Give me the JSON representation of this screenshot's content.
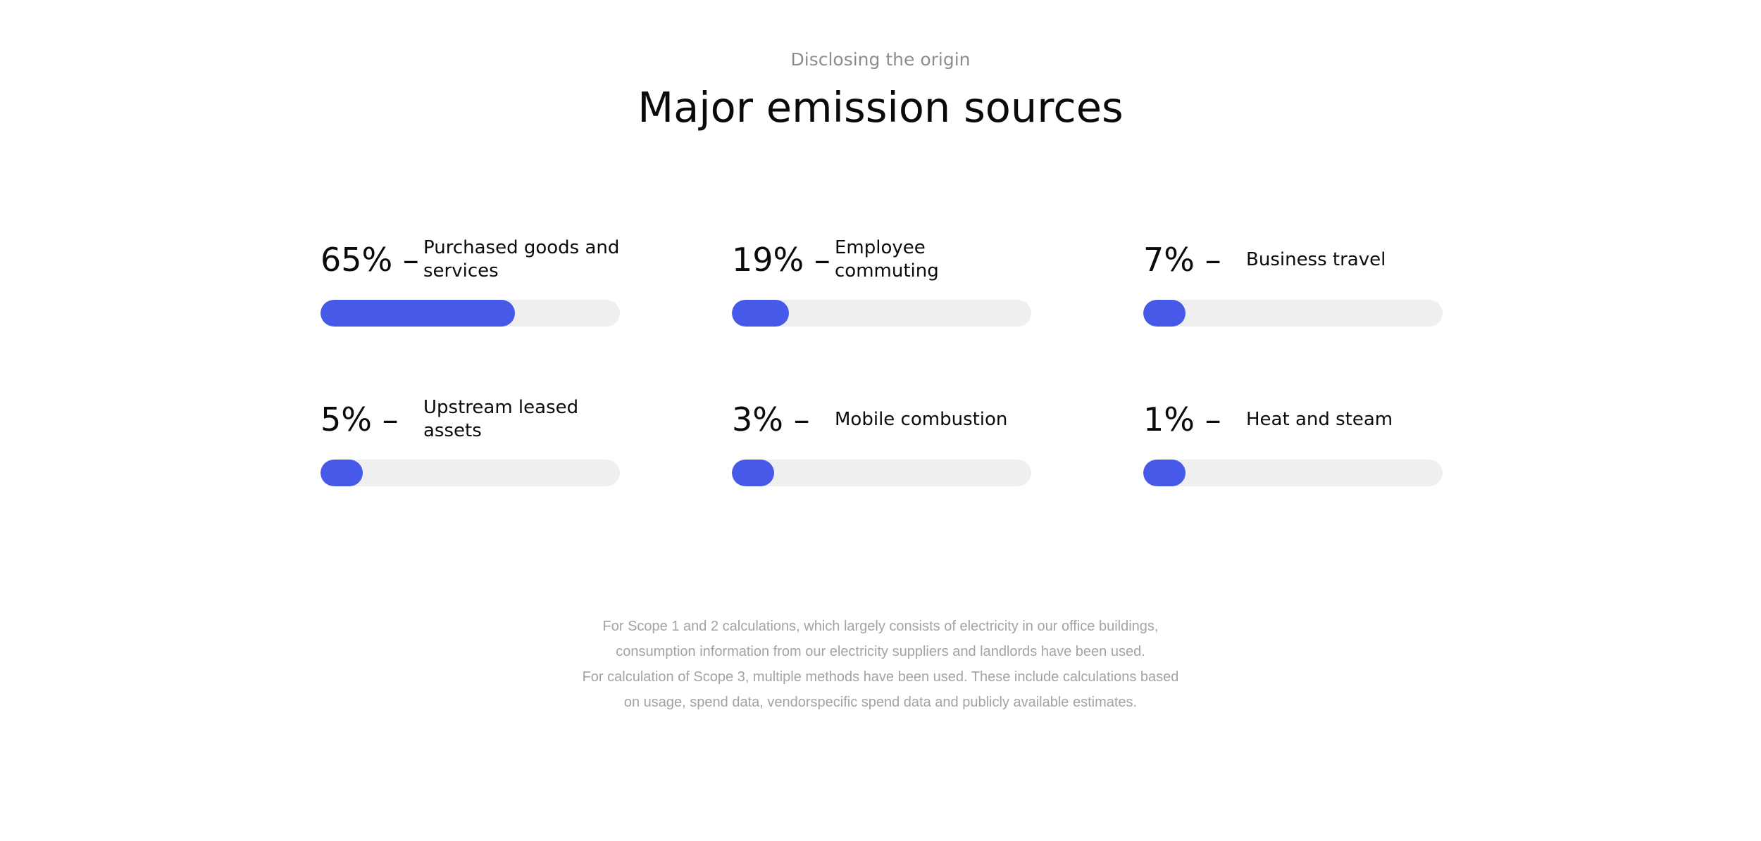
{
  "header": {
    "eyebrow": "Disclosing the origin",
    "title": "Major emission sources"
  },
  "colors": {
    "bar_fill": "#4659e8",
    "bar_track": "#efefef",
    "muted_text": "#a3a3a3"
  },
  "chart_data": {
    "type": "bar",
    "categories": [
      "Purchased goods and services",
      "Employee commuting",
      "Business travel",
      "Upstream leased assets",
      "Mobile combustion",
      "Heat and steam"
    ],
    "values": [
      65,
      19,
      7,
      5,
      3,
      1
    ],
    "value_labels": [
      "65% –",
      "19% –",
      "7% –",
      "5% –",
      "3% –",
      "1% –"
    ],
    "unit": "%",
    "ylim": [
      0,
      100
    ],
    "title": "Major emission sources",
    "xlabel": "",
    "ylabel": "",
    "grid": false,
    "legend": "none"
  },
  "footnote": {
    "lines": [
      "For Scope 1 and 2 calculations, which largely consists of electricity in our office buildings,",
      "consumption information from our electricity suppliers and landlords have been used.",
      "For calculation of Scope 3, multiple methods have been used. These include calculations based",
      "on usage, spend data, vendorspecific spend data and publicly available estimates."
    ]
  }
}
